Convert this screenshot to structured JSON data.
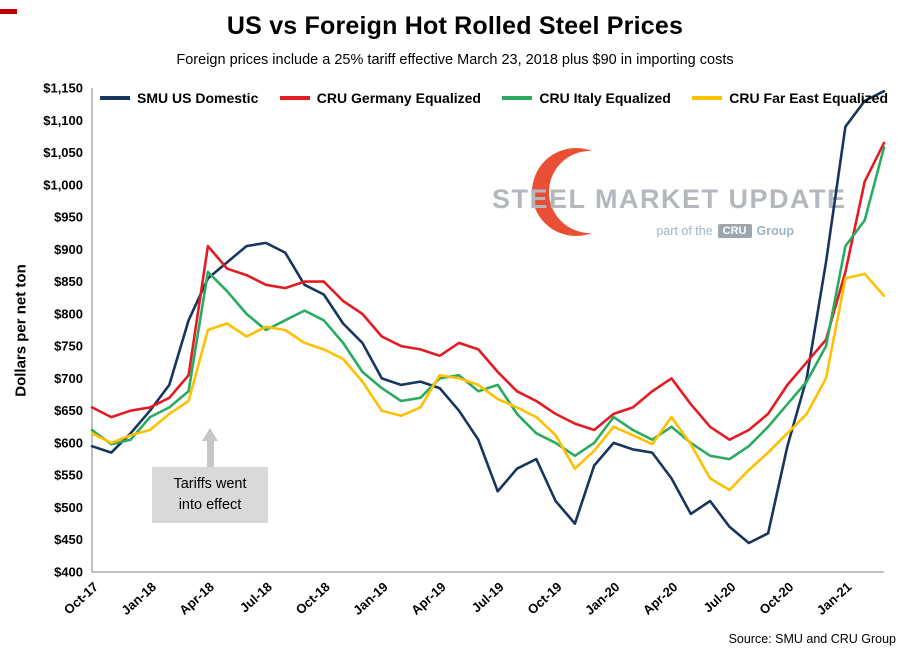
{
  "slide": {
    "title": "US vs Foreign Hot Rolled Steel Prices",
    "subtitle": "Foreign prices include a 25% tariff effective March 23, 2018 plus $90 in importing costs",
    "source": "Source: SMU and CRU Group"
  },
  "watermark": {
    "line1": "STEEL MARKET UPDATE",
    "part_of": "part of the",
    "cru": "CRU",
    "group": "Group",
    "logo_color": "#e94f35"
  },
  "annotation": {
    "line1": "Tariffs went",
    "line2": "into effect"
  },
  "chart_data": {
    "type": "line",
    "title": "US vs Foreign Hot Rolled Steel Prices",
    "subtitle": "Foreign prices include a 25% tariff effective March 23, 2018 plus $90 in importing costs",
    "xlabel": "",
    "ylabel": "Dollars per net ton",
    "ylim": [
      400,
      1150
    ],
    "ytick_step": 50,
    "ytick_labels": [
      "$400",
      "$450",
      "$500",
      "$550",
      "$600",
      "$650",
      "$700",
      "$750",
      "$800",
      "$850",
      "$900",
      "$950",
      "$1,000",
      "$1,050",
      "$1,100",
      "$1,150"
    ],
    "grid": false,
    "legend_position": "top",
    "x_unit": "months since Oct-17",
    "months_total": 41,
    "x_tick_months": [
      0,
      3,
      6,
      9,
      12,
      15,
      18,
      21,
      24,
      27,
      30,
      33,
      36,
      39
    ],
    "x_tick_labels": [
      "Oct-17",
      "Jan-18",
      "Apr-18",
      "Jul-18",
      "Oct-18",
      "Jan-19",
      "Apr-19",
      "Jul-19",
      "Oct-19",
      "Jan-20",
      "Apr-20",
      "Jul-20",
      "Oct-20",
      "Jan-21"
    ],
    "series": [
      {
        "name": "SMU US Domestic",
        "color": "#17365d",
        "values": [
          595,
          585,
          615,
          650,
          690,
          790,
          855,
          880,
          905,
          910,
          895,
          845,
          830,
          785,
          755,
          700,
          690,
          695,
          685,
          650,
          605,
          525,
          560,
          575,
          510,
          475,
          565,
          600,
          590,
          585,
          545,
          490,
          510,
          470,
          445,
          460,
          595,
          700,
          880,
          1090,
          1130,
          1145
        ]
      },
      {
        "name": "CRU Germany Equalized",
        "color": "#e31b23",
        "values": [
          655,
          640,
          650,
          655,
          670,
          705,
          905,
          870,
          860,
          845,
          840,
          850,
          850,
          820,
          800,
          765,
          750,
          745,
          735,
          755,
          745,
          710,
          680,
          665,
          645,
          630,
          620,
          645,
          655,
          680,
          700,
          660,
          625,
          605,
          620,
          645,
          690,
          725,
          760,
          865,
          1005,
          1065
        ]
      },
      {
        "name": "CRU Italy Equalized",
        "color": "#2aab5f",
        "values": [
          620,
          598,
          605,
          640,
          655,
          680,
          865,
          835,
          800,
          775,
          790,
          805,
          790,
          755,
          710,
          685,
          665,
          670,
          700,
          705,
          680,
          690,
          645,
          615,
          600,
          580,
          600,
          640,
          620,
          605,
          625,
          600,
          580,
          575,
          595,
          625,
          660,
          695,
          750,
          905,
          945,
          1058
        ]
      },
      {
        "name": "CRU Far East Equalized",
        "color": "#ffc000",
        "values": [
          615,
          600,
          612,
          620,
          645,
          665,
          775,
          785,
          765,
          780,
          775,
          755,
          745,
          730,
          695,
          650,
          642,
          655,
          705,
          700,
          690,
          668,
          655,
          640,
          612,
          560,
          588,
          625,
          612,
          598,
          640,
          598,
          545,
          527,
          558,
          585,
          615,
          645,
          700,
          855,
          862,
          828
        ]
      }
    ]
  }
}
